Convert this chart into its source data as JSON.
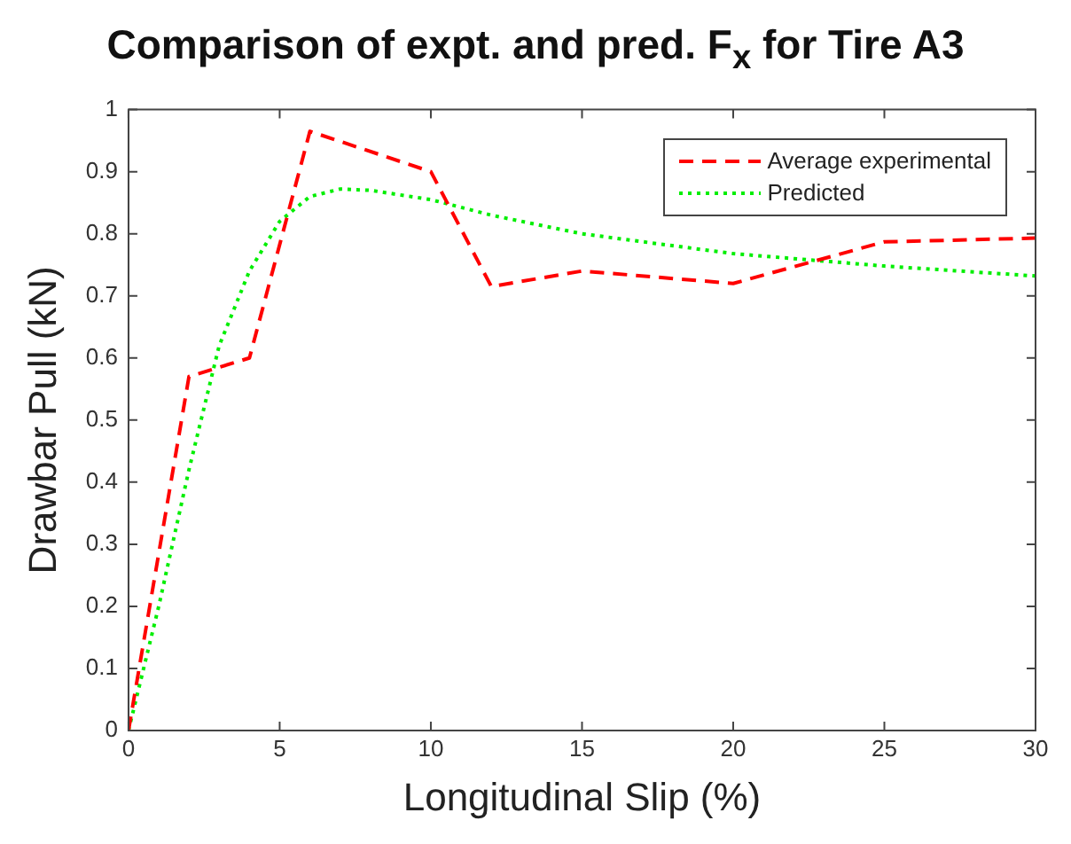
{
  "chart_data": {
    "type": "line",
    "title": "Comparison of expt. and pred. F$_{x}$ for Tire A3",
    "xlabel": "Longitudinal Slip (%)",
    "ylabel": "Drawbar Pull (kN)",
    "series": [
      {
        "name": "Average experimental",
        "color": "#ff0000",
        "line_style": "dashed",
        "x": [
          0,
          2,
          4,
          6,
          10,
          12,
          15,
          20,
          25,
          30
        ],
        "values": [
          0,
          0.57,
          0.6,
          0.965,
          0.9,
          0.715,
          0.74,
          0.72,
          0.787,
          0.793
        ]
      },
      {
        "name": "Predicted",
        "color": "#00ee00",
        "line_style": "dotted",
        "x": [
          0,
          1,
          2,
          3,
          4,
          5,
          6,
          7,
          8,
          10,
          12,
          15,
          20,
          25,
          30
        ],
        "values": [
          0,
          0.2,
          0.42,
          0.62,
          0.74,
          0.82,
          0.86,
          0.872,
          0.87,
          0.855,
          0.83,
          0.8,
          0.768,
          0.748,
          0.732
        ]
      }
    ],
    "xlim": [
      0,
      30
    ],
    "xticks": [
      0,
      5,
      10,
      15,
      20,
      25,
      30
    ],
    "ylim": [
      0,
      1
    ],
    "yticks": [
      0,
      0.1,
      0.2,
      0.3,
      0.4,
      0.5,
      0.6,
      0.7,
      0.8,
      0.9,
      1
    ],
    "grid": false,
    "legend": "top right",
    "marker": "none"
  }
}
